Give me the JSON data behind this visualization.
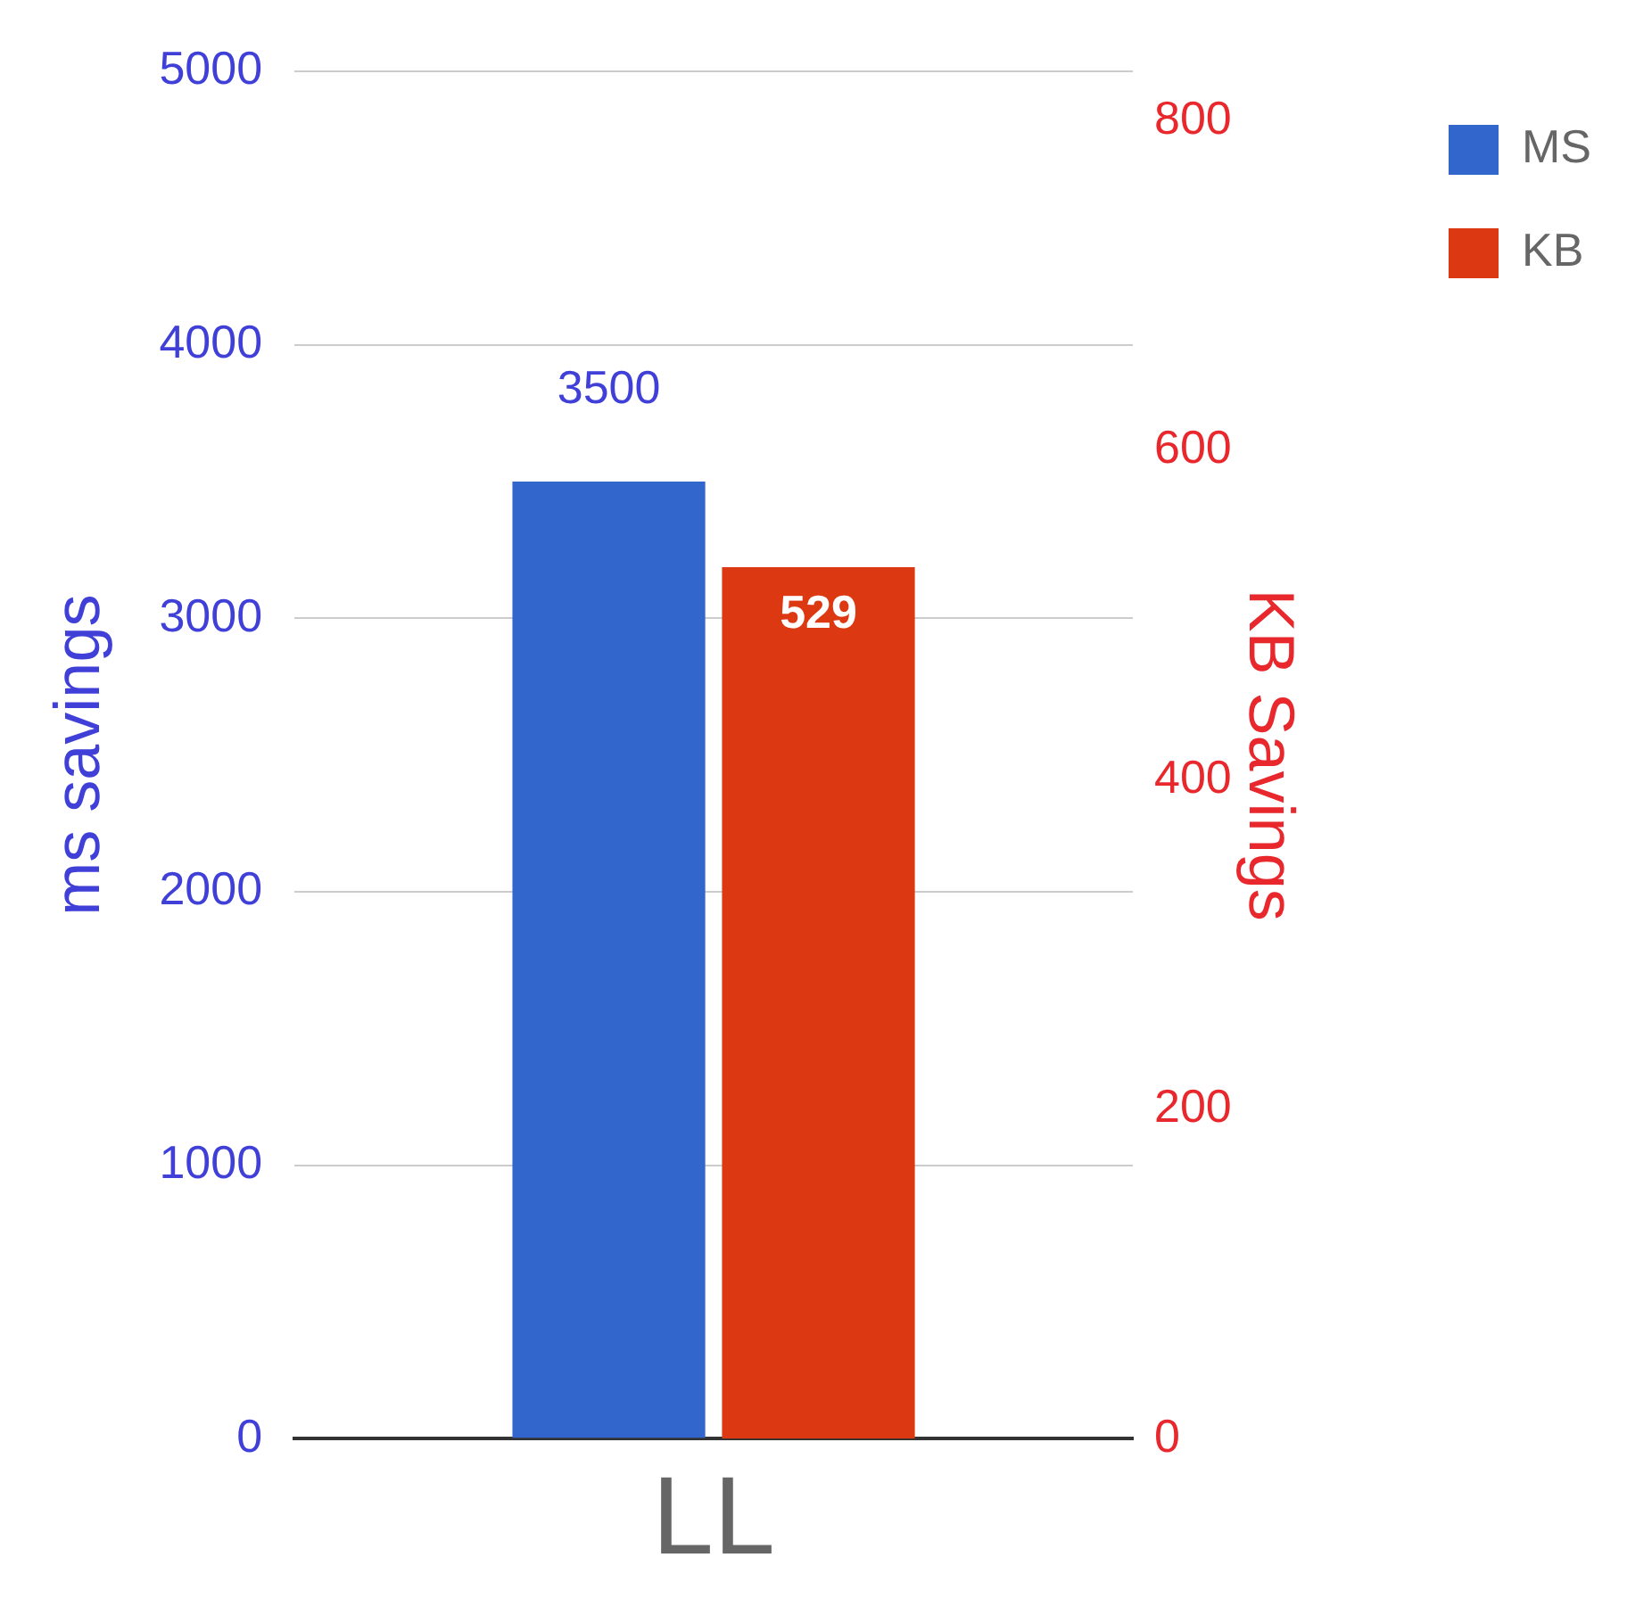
{
  "chart_data": {
    "type": "bar",
    "categories": [
      "LL"
    ],
    "ylabel": "ms savings",
    "y2label": "KB Savings",
    "series": [
      {
        "name": "MS",
        "color": "#3366cc",
        "values": [
          3500
        ]
      },
      {
        "name": "KB",
        "color": "#dc3912",
        "values": [
          529
        ],
        "axis": "y2"
      }
    ],
    "ylim": [
      0,
      5000
    ],
    "yticks": [
      0,
      1000,
      2000,
      3000,
      4000,
      5000
    ],
    "y2lim": [
      0,
      830
    ],
    "y2ticks": [
      0,
      200,
      400,
      600,
      800
    ],
    "grid": "y",
    "legend": "top right",
    "data_labels": true
  }
}
